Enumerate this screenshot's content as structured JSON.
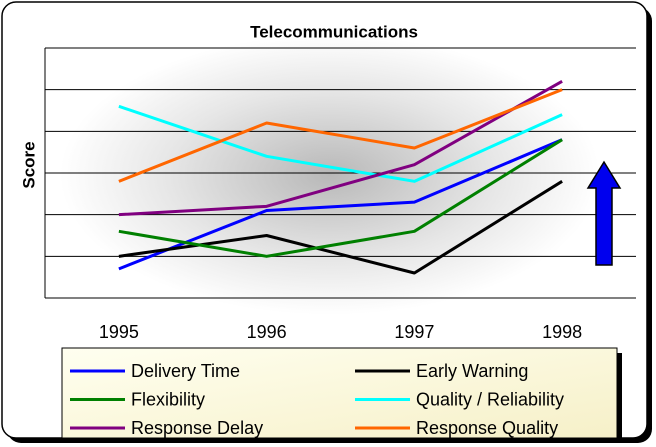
{
  "chart_data": {
    "type": "line",
    "title": "Telecommunications",
    "y_label": "Score",
    "categories": [
      "1995",
      "1996",
      "1997",
      "1998"
    ],
    "series": [
      {
        "name": "Delivery Time",
        "color": "#0000ff",
        "values": [
          0.7,
          2.1,
          2.3,
          3.8
        ]
      },
      {
        "name": "Early Warning",
        "color": "#000000",
        "values": [
          1.0,
          1.5,
          0.6,
          2.8
        ]
      },
      {
        "name": "Flexibility",
        "color": "#008000",
        "values": [
          1.6,
          1.0,
          1.6,
          3.8
        ]
      },
      {
        "name": "Quality / Reliability",
        "color": "#00ffff",
        "values": [
          4.6,
          3.4,
          2.8,
          4.4
        ]
      },
      {
        "name": "Response Delay",
        "color": "#800080",
        "values": [
          2.0,
          2.2,
          3.2,
          5.2
        ]
      },
      {
        "name": "Response Quality",
        "color": "#ff6600",
        "values": [
          2.8,
          4.2,
          3.6,
          5.0
        ]
      }
    ],
    "ylim": [
      0,
      6
    ],
    "yticks": [
      0,
      1,
      2,
      3,
      4,
      5,
      6
    ],
    "grid": true
  }
}
